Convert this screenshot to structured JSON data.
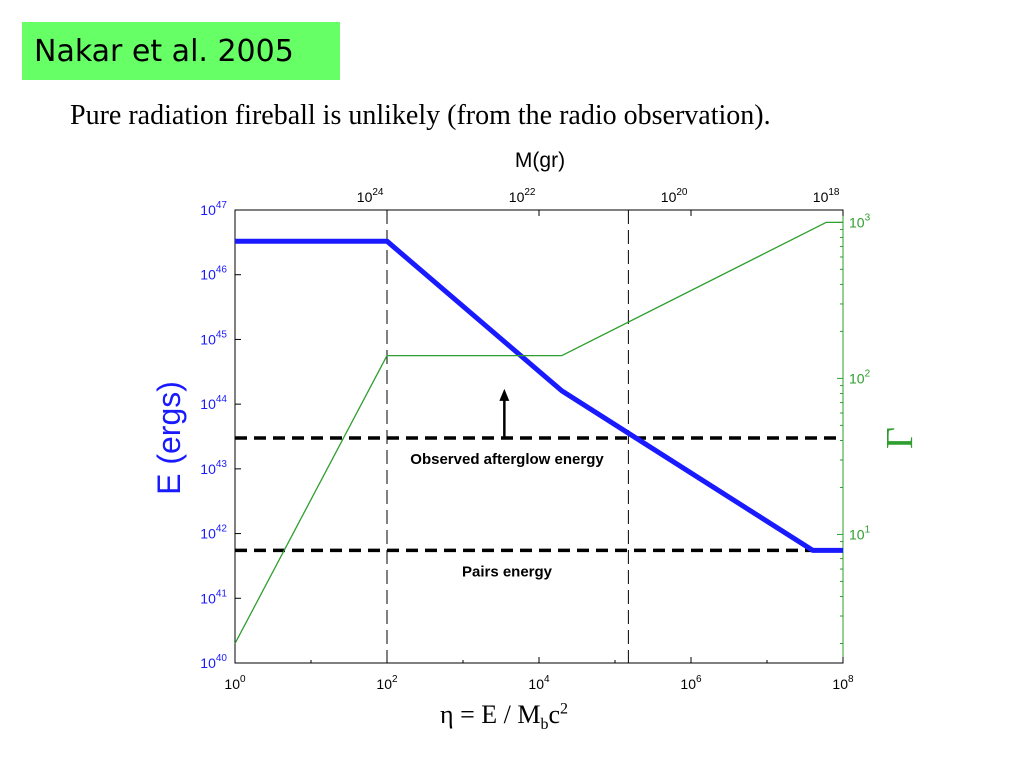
{
  "slide": {
    "title": "Nakar et al. 2005",
    "subtitle": "Pure radiation fireball is unlikely (from the radio observation).",
    "formula": {
      "eta": "η",
      "equals": " = E / M",
      "sub": "b",
      "c": "c",
      "sup": "2"
    }
  },
  "chart_data": {
    "type": "line",
    "x_axis": {
      "label": "",
      "scale": "log",
      "range": [
        1,
        100000000
      ],
      "ticks": [
        {
          "base": "10",
          "exp": "0",
          "value": 1
        },
        {
          "base": "10",
          "exp": "2",
          "value": 100
        },
        {
          "base": "10",
          "exp": "4",
          "value": 10000
        },
        {
          "base": "10",
          "exp": "6",
          "value": 1000000
        },
        {
          "base": "10",
          "exp": "8",
          "value": 100000000
        }
      ]
    },
    "top_axis": {
      "label": "M(gr)",
      "ticks": [
        {
          "base": "10",
          "exp": "24",
          "x": 60
        },
        {
          "base": "10",
          "exp": "22",
          "x": 6000
        },
        {
          "base": "10",
          "exp": "20",
          "x": 600000
        },
        {
          "base": "10",
          "exp": "18",
          "x": 60000000
        }
      ]
    },
    "y_left": {
      "label": "E  (ergs)",
      "color": "#1a1aff",
      "scale": "log",
      "range": [
        1e+40,
        1e+47
      ],
      "ticks": [
        {
          "base": "10",
          "exp": "40",
          "value": 1e+40
        },
        {
          "base": "10",
          "exp": "41",
          "value": 1e+41
        },
        {
          "base": "10",
          "exp": "42",
          "value": 1e+42
        },
        {
          "base": "10",
          "exp": "43",
          "value": 1e+43
        },
        {
          "base": "10",
          "exp": "44",
          "value": 1e+44
        },
        {
          "base": "10",
          "exp": "45",
          "value": 1e+45
        },
        {
          "base": "10",
          "exp": "46",
          "value": 1e+46
        },
        {
          "base": "10",
          "exp": "47",
          "value": 1e+47
        }
      ]
    },
    "y_right": {
      "label": "Γ",
      "color": "#2e9e2e",
      "scale": "log",
      "range": [
        1.5,
        1200
      ],
      "ticks": [
        {
          "base": "10",
          "exp": "1",
          "value": 10
        },
        {
          "base": "10",
          "exp": "2",
          "value": 100
        },
        {
          "base": "10",
          "exp": "3",
          "value": 1000
        }
      ]
    },
    "series": [
      {
        "axis": "left",
        "color": "#1a1aff",
        "points": [
          {
            "x": 1,
            "y": 3.3e+46
          },
          {
            "x": 100,
            "y": 3.3e+46
          },
          {
            "x": 20000,
            "y": 1.6e+44
          },
          {
            "x": 40000000,
            "y": 5.5e+41
          },
          {
            "x": 100000000,
            "y": 5.5e+41
          }
        ]
      },
      {
        "axis": "right",
        "color": "#2e9e2e",
        "points": [
          {
            "x": 1,
            "y": 2
          },
          {
            "x": 100,
            "y": 140
          },
          {
            "x": 20000,
            "y": 140
          },
          {
            "x": 60000000,
            "y": 1000
          },
          {
            "x": 100000000,
            "y": 1000
          }
        ]
      }
    ],
    "reference_lines": [
      {
        "type": "horizontal",
        "axis": "left",
        "value": 3e+43,
        "label": "Observed afterglow energy"
      },
      {
        "type": "horizontal",
        "axis": "left",
        "value": 5.5e+41,
        "label": "Pairs energy"
      },
      {
        "type": "vertical",
        "x": 100
      },
      {
        "type": "vertical",
        "x": 150000
      }
    ],
    "annotations": [
      {
        "type": "arrow",
        "x": 3500,
        "y_from": 3e+43,
        "y_to": 1.6e+44
      }
    ]
  }
}
